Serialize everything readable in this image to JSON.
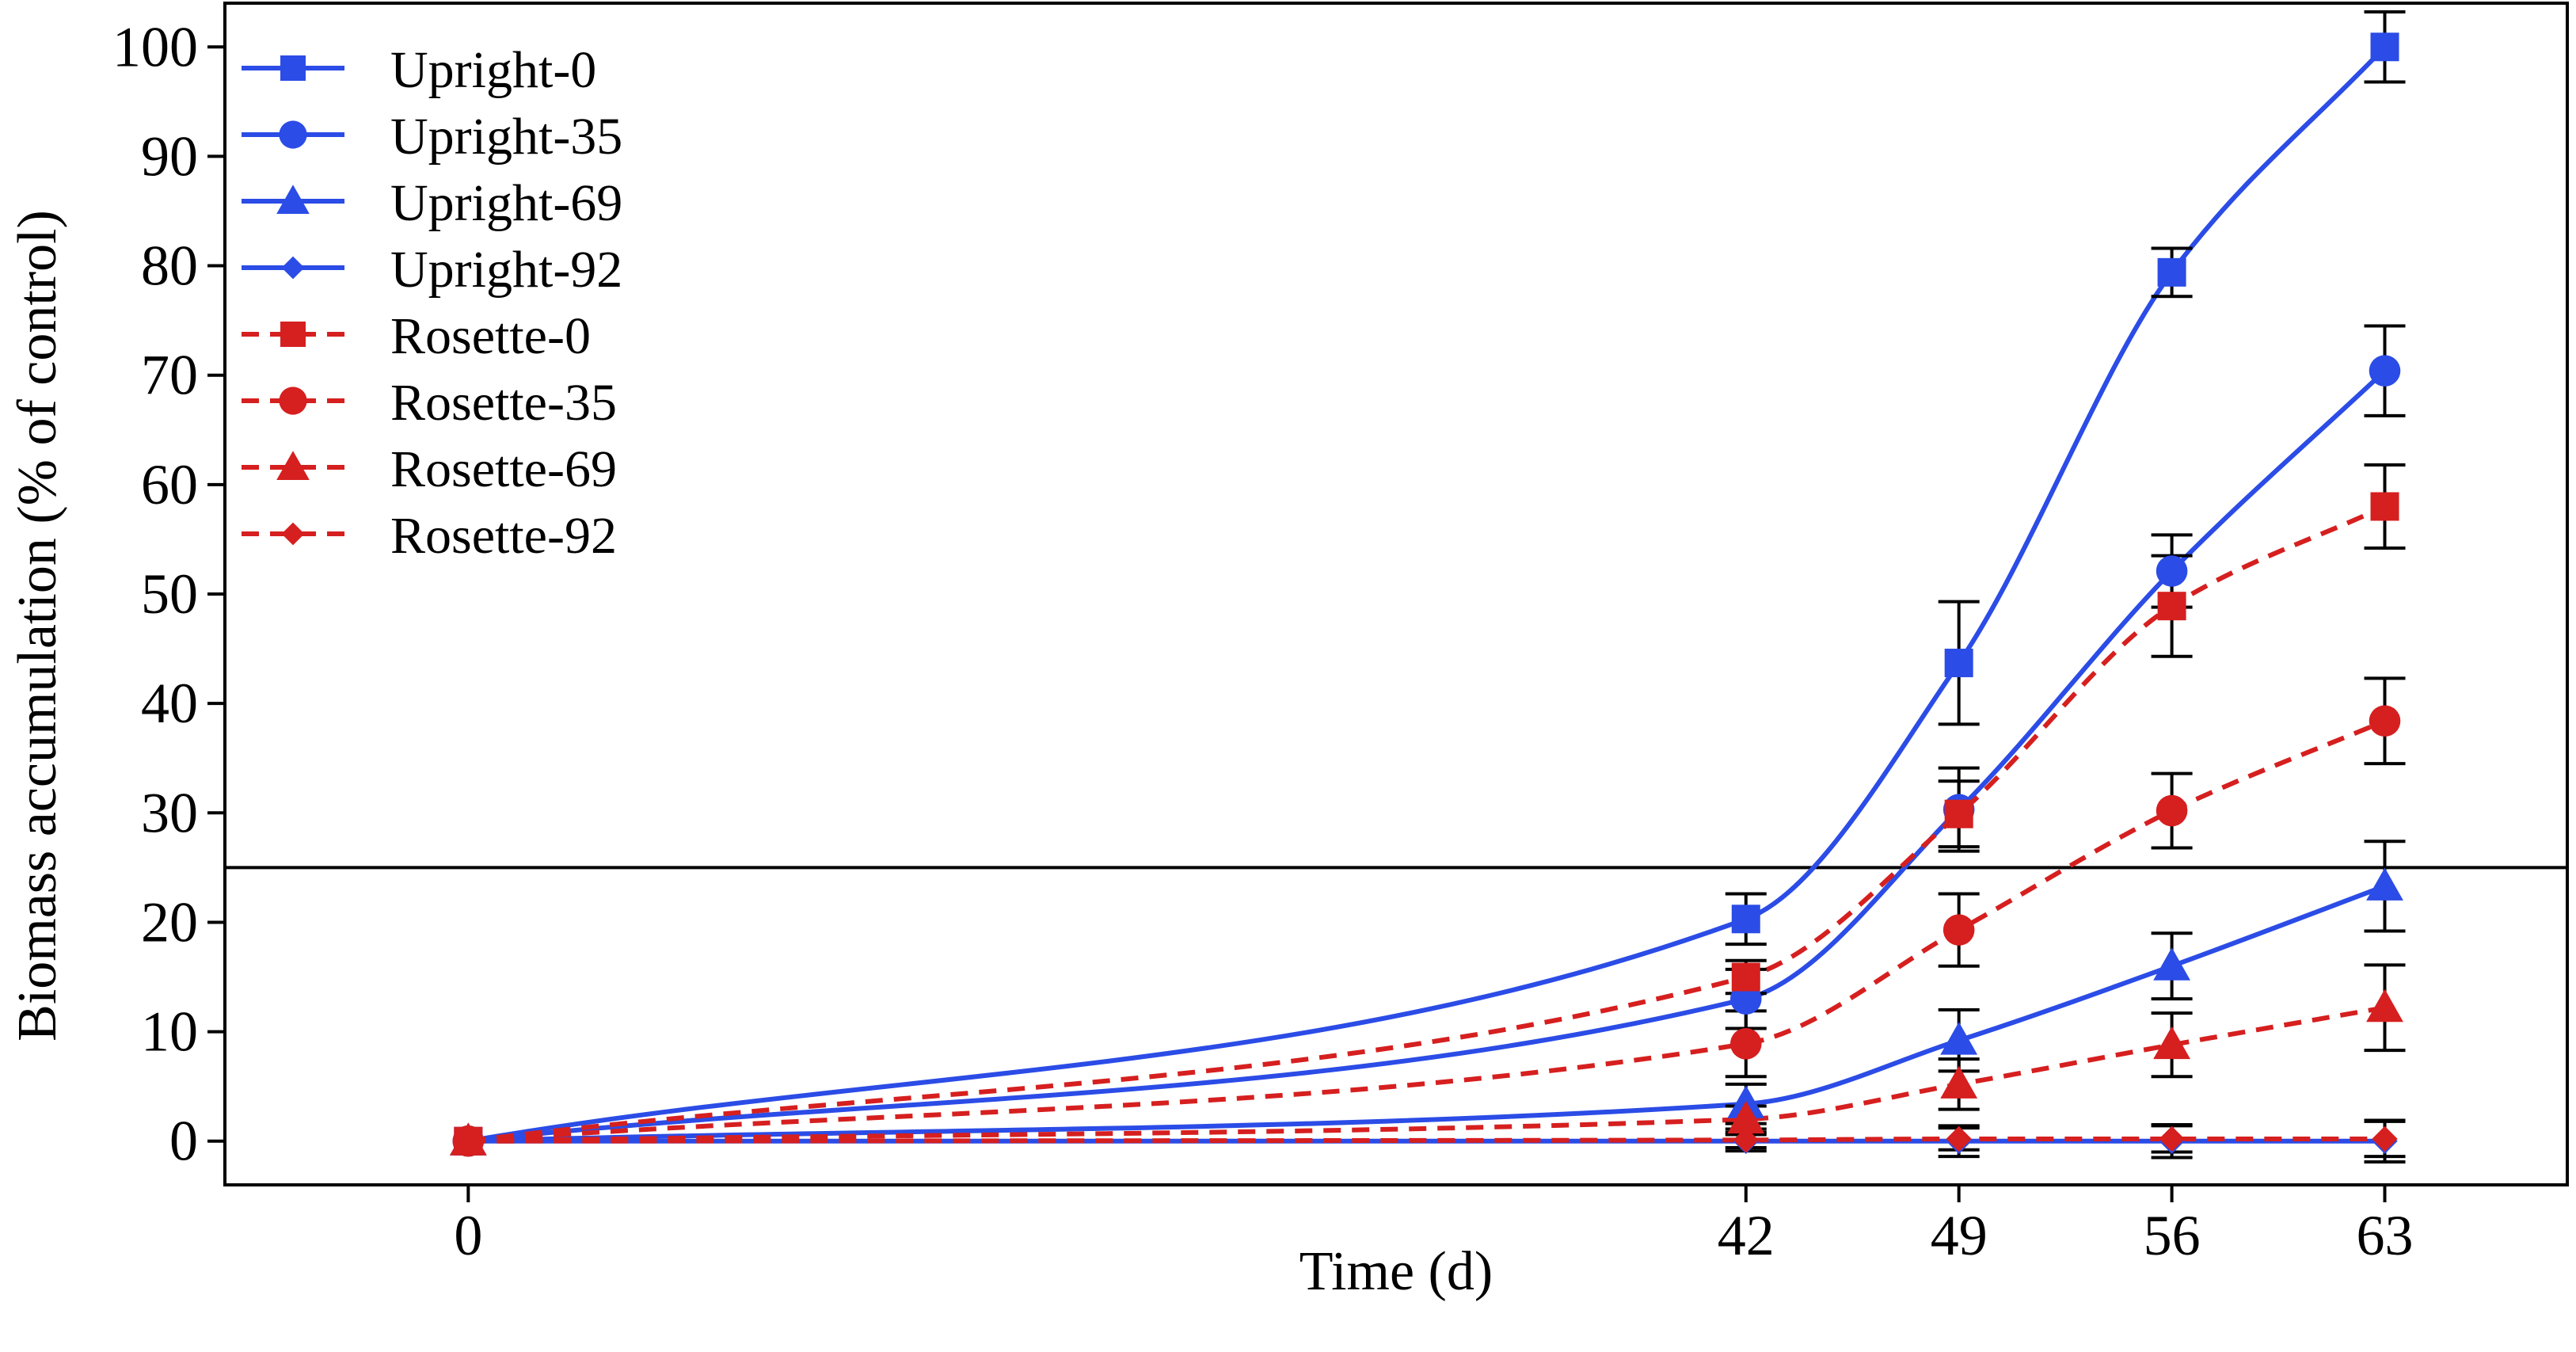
{
  "chart_data": {
    "type": "line",
    "xlabel": "Time (d)",
    "ylabel": "Biomass accumulation (% of control)",
    "xlim": [
      -8,
      69
    ],
    "ylim": [
      -4,
      104
    ],
    "x_ticks": [
      0,
      42,
      49,
      56,
      63
    ],
    "y_ticks": [
      0,
      10,
      20,
      30,
      40,
      50,
      60,
      70,
      80,
      90,
      100
    ],
    "reference_line_y": 25,
    "legend_position": "top-left",
    "colors": {
      "upright": "#2b4ce6",
      "rosette": "#d61f1f",
      "error_bar": "#000000"
    },
    "x": [
      0,
      42,
      49,
      56,
      63
    ],
    "series": [
      {
        "name": "Upright-0",
        "group": "upright",
        "marker": "square",
        "line": "solid",
        "values": [
          0,
          20.3,
          43.7,
          79.4,
          100.0
        ],
        "errors": [
          0.4,
          2.3,
          5.6,
          2.2,
          3.2
        ]
      },
      {
        "name": "Upright-35",
        "group": "upright",
        "marker": "circle",
        "line": "solid",
        "values": [
          0,
          13.0,
          30.3,
          52.1,
          70.4
        ],
        "errors": [
          0.4,
          2.7,
          3.8,
          3.3,
          4.1
        ]
      },
      {
        "name": "Upright-69",
        "group": "upright",
        "marker": "triangle",
        "line": "solid",
        "values": [
          0,
          3.4,
          9.2,
          16.0,
          23.3
        ],
        "errors": [
          0.3,
          1.8,
          2.8,
          3.0,
          4.1
        ]
      },
      {
        "name": "Upright-92",
        "group": "upright",
        "marker": "diamond",
        "line": "solid",
        "values": [
          0,
          0,
          0,
          0,
          0
        ],
        "errors": [
          0.2,
          0.6,
          1.4,
          1.5,
          1.9
        ]
      },
      {
        "name": "Rosette-0",
        "group": "rosette",
        "marker": "square",
        "line": "dashed",
        "values": [
          0,
          15.0,
          29.9,
          48.9,
          58.0
        ],
        "errors": [
          0.4,
          1.5,
          3.0,
          4.6,
          3.8
        ]
      },
      {
        "name": "Rosette-35",
        "group": "rosette",
        "marker": "circle",
        "line": "dashed",
        "values": [
          0,
          8.9,
          19.3,
          30.2,
          38.4
        ],
        "errors": [
          0.4,
          3.0,
          3.3,
          3.4,
          3.9
        ]
      },
      {
        "name": "Rosette-69",
        "group": "rosette",
        "marker": "triangle",
        "line": "dashed",
        "values": [
          0,
          2.0,
          5.2,
          8.8,
          12.2
        ],
        "errors": [
          0.3,
          1.2,
          2.3,
          2.9,
          3.9
        ]
      },
      {
        "name": "Rosette-92",
        "group": "rosette",
        "marker": "diamond",
        "line": "dashed",
        "values": [
          0,
          0.1,
          0.2,
          0.2,
          0.2
        ],
        "errors": [
          0.2,
          1.0,
          1.0,
          1.2,
          1.6
        ]
      }
    ]
  }
}
